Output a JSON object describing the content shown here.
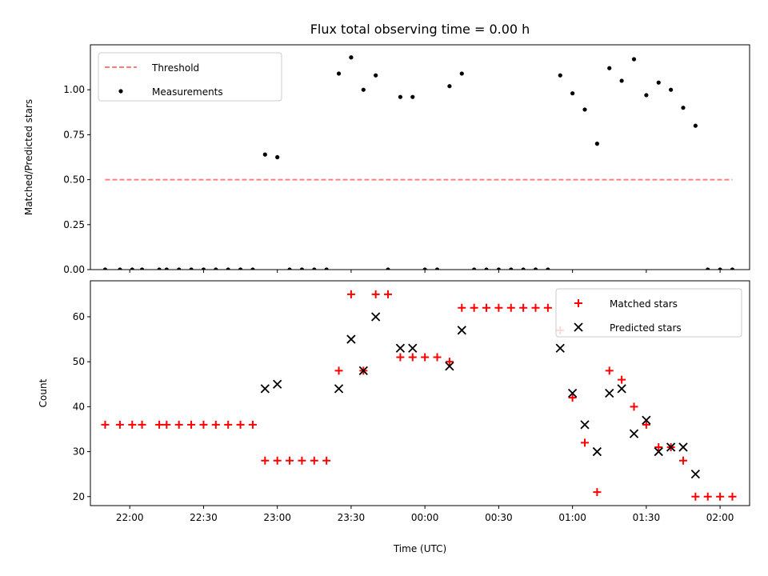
{
  "chart_data": [
    {
      "type": "scatter",
      "title": "Flux total observing time = 0.00 h",
      "ylabel": "Matched/Predicted stars",
      "xlabel": "",
      "ylim": [
        0,
        1.25
      ],
      "yticks": [
        "0.00",
        "0.25",
        "0.50",
        "0.75",
        "1.00"
      ],
      "legend": "top-left",
      "grid": false,
      "series": [
        {
          "name": "Threshold",
          "kind": "dashed-line",
          "color": "#ff7f7f",
          "points": [
            [
              "21:50",
              0.5
            ],
            [
              "02:05",
              0.5
            ]
          ]
        },
        {
          "name": "Measurements",
          "kind": "dots",
          "color": "#000000",
          "points": [
            [
              "21:50",
              0
            ],
            [
              "21:56",
              0
            ],
            [
              "22:01",
              0
            ],
            [
              "22:05",
              0
            ],
            [
              "22:12",
              0
            ],
            [
              "22:15",
              0
            ],
            [
              "22:20",
              0
            ],
            [
              "22:25",
              0
            ],
            [
              "22:30",
              0
            ],
            [
              "22:35",
              0
            ],
            [
              "22:40",
              0
            ],
            [
              "22:45",
              0
            ],
            [
              "22:50",
              0
            ],
            [
              "22:55",
              0.64
            ],
            [
              "23:00",
              0.625
            ],
            [
              "23:05",
              0
            ],
            [
              "23:10",
              0
            ],
            [
              "23:15",
              0
            ],
            [
              "23:20",
              0
            ],
            [
              "23:25",
              1.09
            ],
            [
              "23:30",
              1.18
            ],
            [
              "23:35",
              1.0
            ],
            [
              "23:40",
              1.08
            ],
            [
              "23:45",
              0
            ],
            [
              "23:50",
              0.96
            ],
            [
              "23:55",
              0.96
            ],
            [
              "00:00",
              0
            ],
            [
              "00:05",
              0
            ],
            [
              "00:10",
              1.02
            ],
            [
              "00:15",
              1.09
            ],
            [
              "00:20",
              0
            ],
            [
              "00:25",
              0
            ],
            [
              "00:30",
              0
            ],
            [
              "00:35",
              0
            ],
            [
              "00:40",
              0
            ],
            [
              "00:45",
              0
            ],
            [
              "00:50",
              0
            ],
            [
              "00:55",
              1.08
            ],
            [
              "01:00",
              0.98
            ],
            [
              "01:05",
              0.89
            ],
            [
              "01:10",
              0.7
            ],
            [
              "01:15",
              1.12
            ],
            [
              "01:20",
              1.05
            ],
            [
              "01:25",
              1.17
            ],
            [
              "01:30",
              0.97
            ],
            [
              "01:35",
              1.04
            ],
            [
              "01:40",
              1.0
            ],
            [
              "01:45",
              0.9
            ],
            [
              "01:50",
              0.8
            ],
            [
              "01:55",
              0
            ],
            [
              "02:00",
              0
            ],
            [
              "02:05",
              0
            ]
          ]
        }
      ]
    },
    {
      "type": "scatter",
      "title": "",
      "ylabel": "Count",
      "xlabel": "Time (UTC)",
      "ylim": [
        18,
        68
      ],
      "yticks": [
        "20",
        "30",
        "40",
        "50",
        "60"
      ],
      "xticks": [
        "22:00",
        "22:30",
        "23:00",
        "23:30",
        "00:00",
        "00:30",
        "01:00",
        "01:30",
        "02:00"
      ],
      "legend": "top-right",
      "grid": false,
      "series": [
        {
          "name": "Matched stars",
          "kind": "plus",
          "color": "#ff0000",
          "points": [
            [
              "21:50",
              36
            ],
            [
              "21:56",
              36
            ],
            [
              "22:01",
              36
            ],
            [
              "22:05",
              36
            ],
            [
              "22:12",
              36
            ],
            [
              "22:15",
              36
            ],
            [
              "22:20",
              36
            ],
            [
              "22:25",
              36
            ],
            [
              "22:30",
              36
            ],
            [
              "22:35",
              36
            ],
            [
              "22:40",
              36
            ],
            [
              "22:45",
              36
            ],
            [
              "22:50",
              36
            ],
            [
              "22:55",
              28
            ],
            [
              "23:00",
              28
            ],
            [
              "23:05",
              28
            ],
            [
              "23:10",
              28
            ],
            [
              "23:15",
              28
            ],
            [
              "23:20",
              28
            ],
            [
              "23:25",
              48
            ],
            [
              "23:30",
              65
            ],
            [
              "23:35",
              48
            ],
            [
              "23:40",
              65
            ],
            [
              "23:45",
              65
            ],
            [
              "23:50",
              51
            ],
            [
              "23:55",
              51
            ],
            [
              "00:00",
              51
            ],
            [
              "00:05",
              51
            ],
            [
              "00:10",
              50
            ],
            [
              "00:15",
              62
            ],
            [
              "00:20",
              62
            ],
            [
              "00:25",
              62
            ],
            [
              "00:30",
              62
            ],
            [
              "00:35",
              62
            ],
            [
              "00:40",
              62
            ],
            [
              "00:45",
              62
            ],
            [
              "00:50",
              62
            ],
            [
              "00:55",
              57
            ],
            [
              "01:00",
              42
            ],
            [
              "01:05",
              32
            ],
            [
              "01:10",
              21
            ],
            [
              "01:15",
              48
            ],
            [
              "01:20",
              46
            ],
            [
              "01:25",
              40
            ],
            [
              "01:30",
              36
            ],
            [
              "01:35",
              31
            ],
            [
              "01:40",
              31
            ],
            [
              "01:45",
              28
            ],
            [
              "01:50",
              20
            ],
            [
              "01:55",
              20
            ],
            [
              "02:00",
              20
            ],
            [
              "02:05",
              20
            ]
          ]
        },
        {
          "name": "Predicted stars",
          "kind": "cross",
          "color": "#000000",
          "points": [
            [
              "22:55",
              44
            ],
            [
              "23:00",
              45
            ],
            [
              "23:25",
              44
            ],
            [
              "23:30",
              55
            ],
            [
              "23:35",
              48
            ],
            [
              "23:40",
              60
            ],
            [
              "23:50",
              53
            ],
            [
              "23:55",
              53
            ],
            [
              "00:10",
              49
            ],
            [
              "00:15",
              57
            ],
            [
              "00:55",
              53
            ],
            [
              "01:00",
              43
            ],
            [
              "01:05",
              36
            ],
            [
              "01:10",
              30
            ],
            [
              "01:15",
              43
            ],
            [
              "01:20",
              44
            ],
            [
              "01:25",
              34
            ],
            [
              "01:30",
              37
            ],
            [
              "01:35",
              30
            ],
            [
              "01:40",
              31
            ],
            [
              "01:45",
              31
            ],
            [
              "01:50",
              25
            ]
          ]
        }
      ]
    }
  ]
}
